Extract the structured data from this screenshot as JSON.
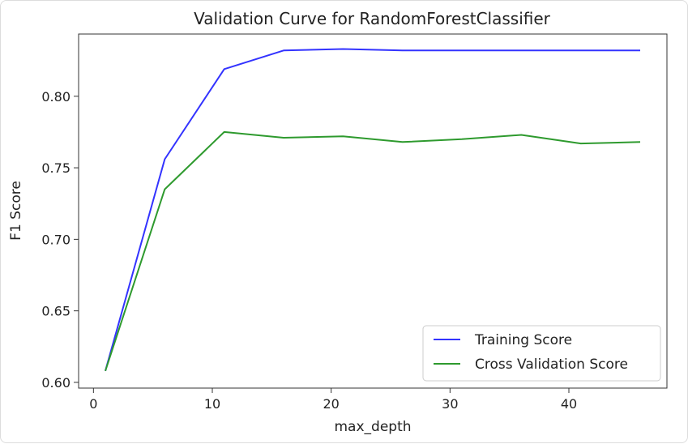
{
  "chart_data": {
    "type": "line",
    "title": "Validation Curve for RandomForestClassifier",
    "xlabel": "max_depth",
    "ylabel": "F1 Score",
    "xlim": [
      -1.25,
      48.25
    ],
    "ylim": [
      0.596,
      0.8435
    ],
    "xticks": [
      0,
      10,
      20,
      30,
      40
    ],
    "yticks": [
      0.6,
      0.65,
      0.7,
      0.75,
      0.8
    ],
    "ytick_labels": [
      "0.60",
      "0.65",
      "0.70",
      "0.75",
      "0.80"
    ],
    "grid": false,
    "legend_position": "lower-right",
    "x": [
      1,
      6,
      11,
      16,
      21,
      26,
      31,
      36,
      41,
      46
    ],
    "series": [
      {
        "name": "Training Score",
        "color": "#3333ff",
        "values": [
          0.608,
          0.756,
          0.819,
          0.832,
          0.833,
          0.832,
          0.832,
          0.832,
          0.832,
          0.832
        ]
      },
      {
        "name": "Cross Validation Score",
        "color": "#2e9a2e",
        "values": [
          0.608,
          0.735,
          0.775,
          0.771,
          0.772,
          0.768,
          0.77,
          0.773,
          0.767,
          0.768
        ]
      }
    ]
  }
}
